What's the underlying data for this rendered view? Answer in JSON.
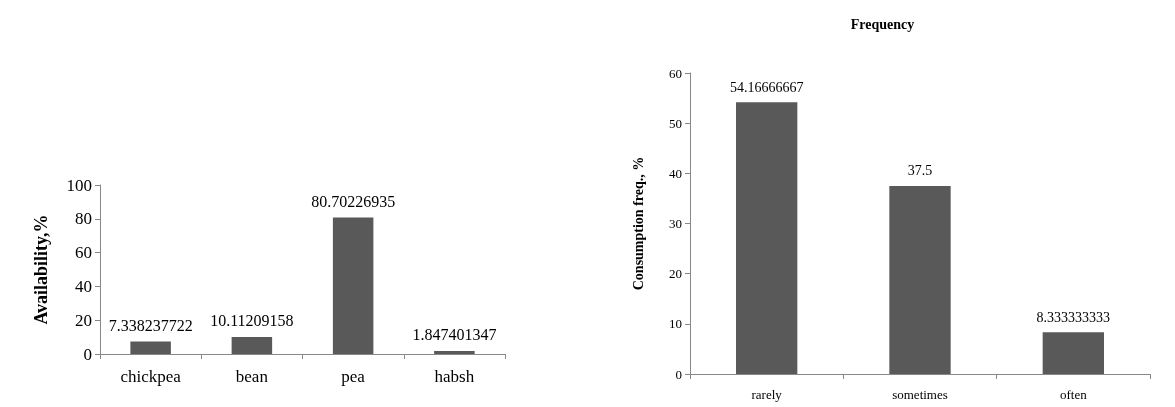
{
  "chart_data": [
    {
      "type": "bar",
      "ylabel": "Availability,%",
      "categories": [
        "chickpea",
        "bean",
        "pea",
        "habsh"
      ],
      "values": [
        7.338237722,
        10.11209158,
        80.70226935,
        1.847401347
      ],
      "color": "#595959",
      "ylim": [
        0,
        100
      ],
      "yticks": [
        0,
        20,
        40,
        60,
        80,
        100
      ],
      "data_labels": true,
      "grid": false
    },
    {
      "type": "bar",
      "title": "Frequency",
      "ylabel": "Consumption freq., %",
      "categories": [
        "rarely",
        "sometimes",
        "often"
      ],
      "values": [
        54.16666667,
        37.5,
        8.333333333
      ],
      "color": "#595959",
      "ylim": [
        0,
        60
      ],
      "yticks": [
        0,
        10,
        20,
        30,
        40,
        50,
        60
      ],
      "data_labels": true,
      "grid": false
    }
  ]
}
